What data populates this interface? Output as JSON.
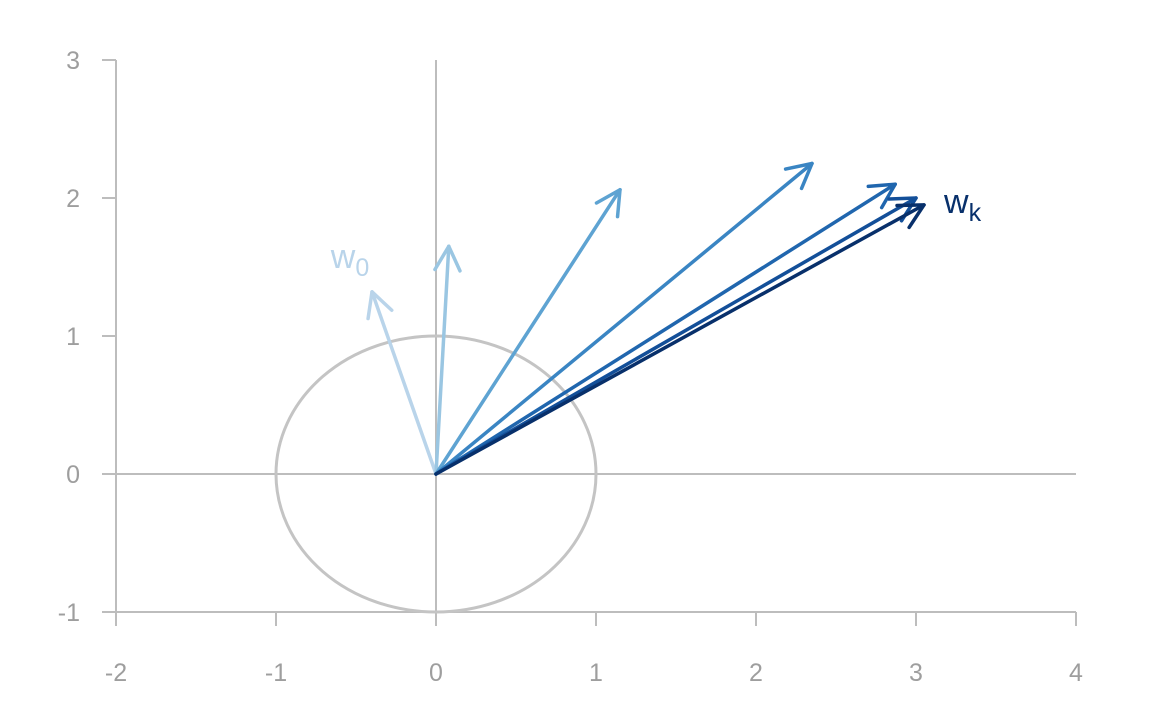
{
  "chart_data": {
    "type": "vector-plot",
    "title": "",
    "xlabel": "",
    "ylabel": "",
    "xlim": [
      -2,
      4
    ],
    "ylim": [
      -1,
      3
    ],
    "x_ticks": [
      -2,
      -1,
      0,
      1,
      2,
      3,
      4
    ],
    "y_ticks": [
      -1,
      0,
      1,
      2,
      3
    ],
    "grid": false,
    "axis_color": "#bdbdbd",
    "unit_circle": {
      "center": [
        0,
        0
      ],
      "radius": 1,
      "color": "#c4c4c4"
    },
    "vectors": [
      {
        "from": [
          0,
          0
        ],
        "to": [
          -0.4,
          1.32
        ],
        "color": "#b9d4ea",
        "label": "w",
        "label_sub": "0"
      },
      {
        "from": [
          0,
          0
        ],
        "to": [
          0.08,
          1.65
        ],
        "color": "#9ac6e2",
        "label": "",
        "label_sub": ""
      },
      {
        "from": [
          0,
          0
        ],
        "to": [
          1.15,
          2.06
        ],
        "color": "#5ea3d2",
        "label": "",
        "label_sub": ""
      },
      {
        "from": [
          0,
          0
        ],
        "to": [
          2.35,
          2.25
        ],
        "color": "#3a85c3",
        "label": "",
        "label_sub": ""
      },
      {
        "from": [
          0,
          0
        ],
        "to": [
          2.87,
          2.1
        ],
        "color": "#2066ae",
        "label": "",
        "label_sub": ""
      },
      {
        "from": [
          0,
          0
        ],
        "to": [
          3.0,
          2.0
        ],
        "color": "#134f99",
        "label": "",
        "label_sub": ""
      },
      {
        "from": [
          0,
          0
        ],
        "to": [
          3.05,
          1.95
        ],
        "color": "#08306b",
        "label": "w",
        "label_sub": "k"
      }
    ]
  }
}
